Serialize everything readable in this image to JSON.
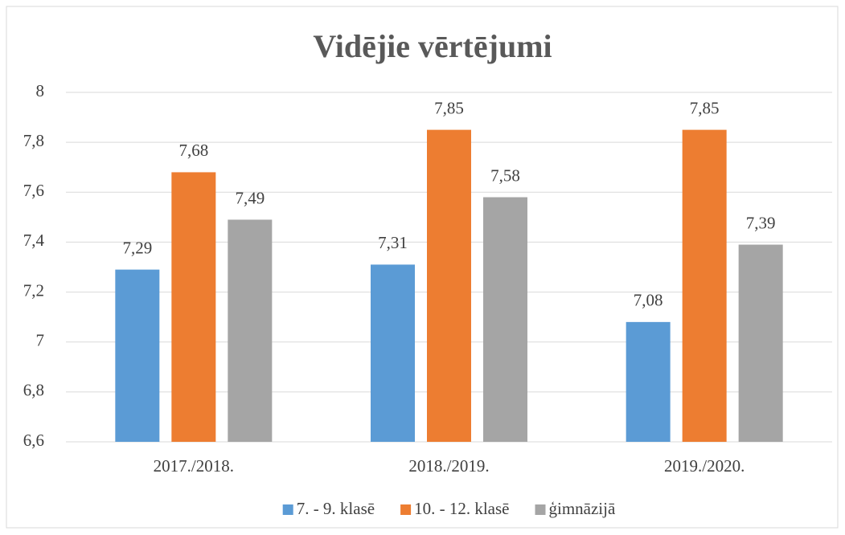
{
  "chart_data": {
    "type": "bar",
    "title": "Vidējie vērtējumi",
    "categories": [
      "2017./2018.",
      "2018./2019.",
      "2019./2020."
    ],
    "series": [
      {
        "name": "7. - 9. klasē",
        "color": "#5b9bd5",
        "values": [
          7.29,
          7.31,
          7.08
        ],
        "value_labels": [
          "7,29",
          "7,31",
          "7,08"
        ]
      },
      {
        "name": "10. - 12. klasē",
        "color": "#ed7d31",
        "values": [
          7.68,
          7.85,
          7.85
        ],
        "value_labels": [
          "7,68",
          "7,85",
          "7,85"
        ]
      },
      {
        "name": "ģimnāzijā",
        "color": "#a5a5a5",
        "values": [
          7.49,
          7.58,
          7.39
        ],
        "value_labels": [
          "7,49",
          "7,58",
          "7,39"
        ]
      }
    ],
    "ylim": [
      6.6,
      8
    ],
    "yticks": [
      {
        "value": 6.6,
        "label": "6,6"
      },
      {
        "value": 6.8,
        "label": "6,8"
      },
      7,
      {
        "value": 7.2,
        "label": "7,2"
      },
      {
        "value": 7.4,
        "label": "7,4"
      },
      {
        "value": 7.6,
        "label": "7,6"
      },
      {
        "value": 7.8,
        "label": "7,8"
      },
      8
    ],
    "grid": true,
    "legend": "bottom"
  }
}
